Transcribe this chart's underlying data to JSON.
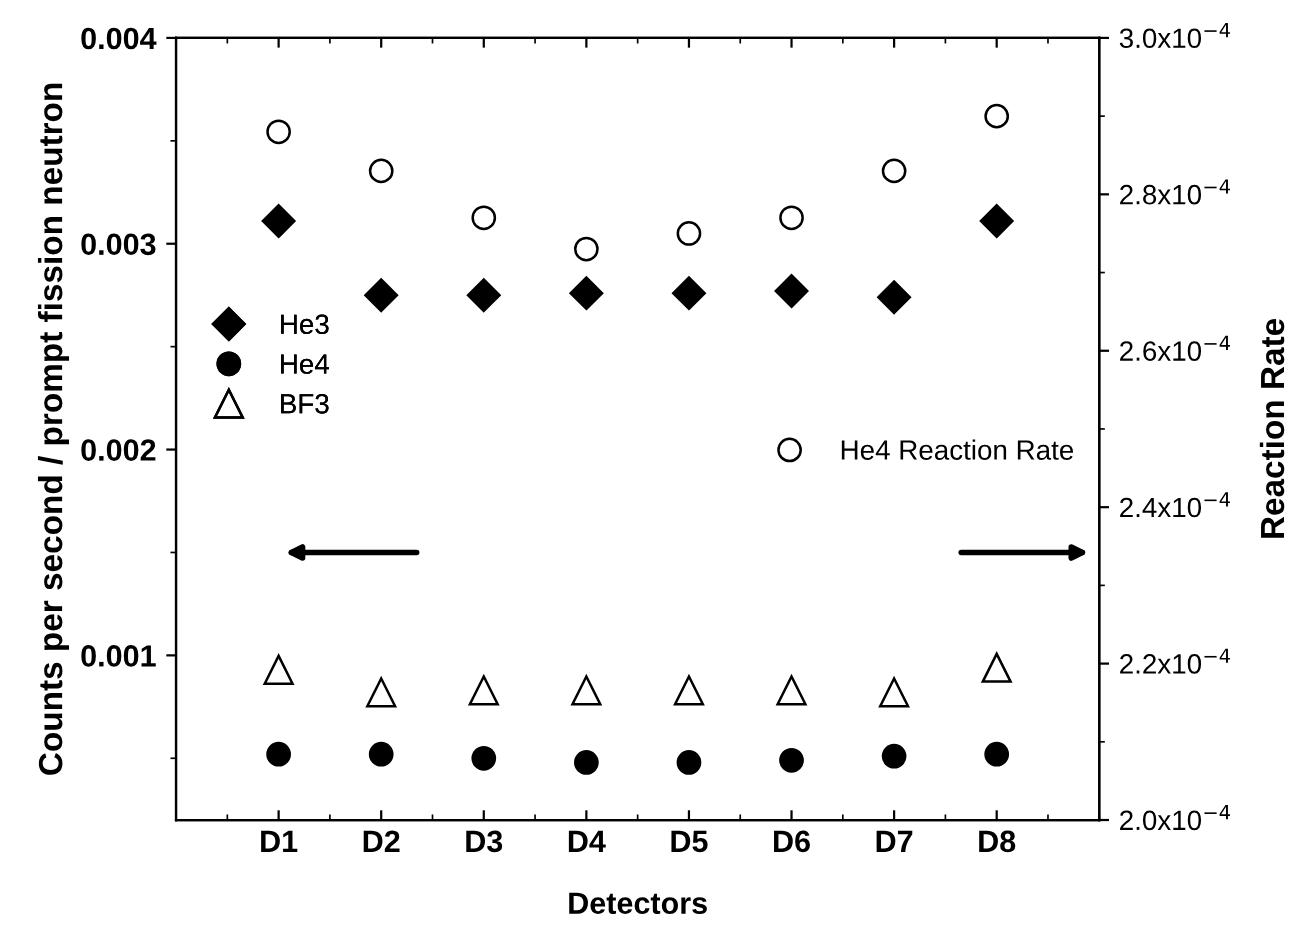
{
  "chart_data": {
    "type": "scatter",
    "xlabel": "Detectors",
    "ylabel": "Counts per second / prompt fission neutron",
    "y2label": "Reaction Rate",
    "categories": [
      "D1",
      "D2",
      "D3",
      "D4",
      "D5",
      "D6",
      "D7",
      "D8"
    ],
    "ylim": [
      0.0002,
      0.004
    ],
    "yticks": [
      0.001,
      0.002,
      0.003,
      0.004
    ],
    "y2lim": [
      0.0002,
      0.0003
    ],
    "y2ticks": [
      {
        "value": 0.0002,
        "label": "2.0x10$^{−4}$"
      },
      {
        "value": 0.00022,
        "label": "2.2x10$^{−4}$"
      },
      {
        "value": 0.00024,
        "label": "2.4x10$^{−4}$"
      },
      {
        "value": 0.00026,
        "label": "2.6x10$^{−4}$"
      },
      {
        "value": 0.00028,
        "label": "2.8x10$^{−4}$"
      },
      {
        "value": 0.0003,
        "label": "3.0x10$^{−4}$"
      }
    ],
    "grid": false,
    "legend": "left",
    "series": [
      {
        "name": "He3",
        "color": "#000000",
        "marker": "diamond",
        "values": [
          0.00311,
          0.00275,
          0.00275,
          0.00276,
          0.00276,
          0.00277,
          0.00274,
          0.00311
        ]
      },
      {
        "name": "He4",
        "color": "#000000",
        "marker": "circle",
        "values": [
          0.00052,
          0.00052,
          0.0005,
          0.00048,
          0.00048,
          0.00049,
          0.00051,
          0.00052
        ]
      },
      {
        "name": "BF3",
        "color": "#000000",
        "marker": "triangle",
        "values": [
          0.00093,
          0.00082,
          0.00083,
          0.00083,
          0.00083,
          0.00083,
          0.00082,
          0.00094
        ]
      },
      {
        "name": "He4 Reaction Rate",
        "color": "#000000",
        "marker": "circle",
        "axis": "y2",
        "values": [
          0.000288,
          0.000283,
          0.000277,
          0.000273,
          0.000275,
          0.000277,
          0.000283,
          0.00029
        ]
      }
    ]
  }
}
